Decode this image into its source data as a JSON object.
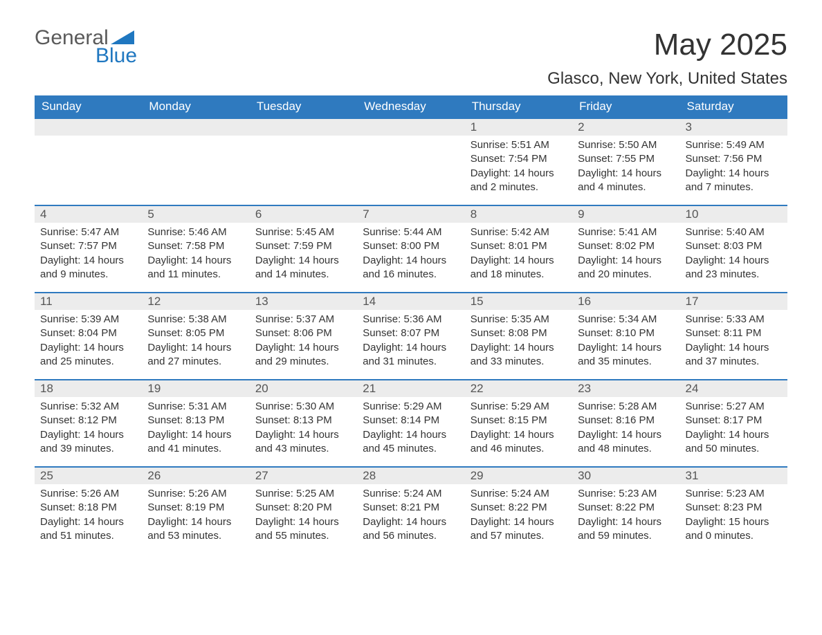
{
  "brand": {
    "name_part1": "General",
    "name_part2": "Blue",
    "text_color": "#5a5a5a",
    "accent_color": "#1f77c0"
  },
  "header": {
    "month_title": "May 2025",
    "location": "Glasco, New York, United States"
  },
  "colors": {
    "header_bg": "#2f7abf",
    "header_text": "#ffffff",
    "daynum_bg": "#ececec",
    "daynum_text": "#555555",
    "row_divider": "#2f7abf",
    "body_text": "#333333",
    "page_bg": "#ffffff"
  },
  "typography": {
    "month_title_fontsize": 44,
    "location_fontsize": 24,
    "weekday_fontsize": 17,
    "daynum_fontsize": 17,
    "body_fontsize": 15
  },
  "calendar": {
    "weekdays": [
      "Sunday",
      "Monday",
      "Tuesday",
      "Wednesday",
      "Thursday",
      "Friday",
      "Saturday"
    ],
    "weeks": [
      [
        {
          "day": "",
          "lines": []
        },
        {
          "day": "",
          "lines": []
        },
        {
          "day": "",
          "lines": []
        },
        {
          "day": "",
          "lines": []
        },
        {
          "day": "1",
          "lines": [
            "Sunrise: 5:51 AM",
            "Sunset: 7:54 PM",
            "Daylight: 14 hours and 2 minutes."
          ]
        },
        {
          "day": "2",
          "lines": [
            "Sunrise: 5:50 AM",
            "Sunset: 7:55 PM",
            "Daylight: 14 hours and 4 minutes."
          ]
        },
        {
          "day": "3",
          "lines": [
            "Sunrise: 5:49 AM",
            "Sunset: 7:56 PM",
            "Daylight: 14 hours and 7 minutes."
          ]
        }
      ],
      [
        {
          "day": "4",
          "lines": [
            "Sunrise: 5:47 AM",
            "Sunset: 7:57 PM",
            "Daylight: 14 hours and 9 minutes."
          ]
        },
        {
          "day": "5",
          "lines": [
            "Sunrise: 5:46 AM",
            "Sunset: 7:58 PM",
            "Daylight: 14 hours and 11 minutes."
          ]
        },
        {
          "day": "6",
          "lines": [
            "Sunrise: 5:45 AM",
            "Sunset: 7:59 PM",
            "Daylight: 14 hours and 14 minutes."
          ]
        },
        {
          "day": "7",
          "lines": [
            "Sunrise: 5:44 AM",
            "Sunset: 8:00 PM",
            "Daylight: 14 hours and 16 minutes."
          ]
        },
        {
          "day": "8",
          "lines": [
            "Sunrise: 5:42 AM",
            "Sunset: 8:01 PM",
            "Daylight: 14 hours and 18 minutes."
          ]
        },
        {
          "day": "9",
          "lines": [
            "Sunrise: 5:41 AM",
            "Sunset: 8:02 PM",
            "Daylight: 14 hours and 20 minutes."
          ]
        },
        {
          "day": "10",
          "lines": [
            "Sunrise: 5:40 AM",
            "Sunset: 8:03 PM",
            "Daylight: 14 hours and 23 minutes."
          ]
        }
      ],
      [
        {
          "day": "11",
          "lines": [
            "Sunrise: 5:39 AM",
            "Sunset: 8:04 PM",
            "Daylight: 14 hours and 25 minutes."
          ]
        },
        {
          "day": "12",
          "lines": [
            "Sunrise: 5:38 AM",
            "Sunset: 8:05 PM",
            "Daylight: 14 hours and 27 minutes."
          ]
        },
        {
          "day": "13",
          "lines": [
            "Sunrise: 5:37 AM",
            "Sunset: 8:06 PM",
            "Daylight: 14 hours and 29 minutes."
          ]
        },
        {
          "day": "14",
          "lines": [
            "Sunrise: 5:36 AM",
            "Sunset: 8:07 PM",
            "Daylight: 14 hours and 31 minutes."
          ]
        },
        {
          "day": "15",
          "lines": [
            "Sunrise: 5:35 AM",
            "Sunset: 8:08 PM",
            "Daylight: 14 hours and 33 minutes."
          ]
        },
        {
          "day": "16",
          "lines": [
            "Sunrise: 5:34 AM",
            "Sunset: 8:10 PM",
            "Daylight: 14 hours and 35 minutes."
          ]
        },
        {
          "day": "17",
          "lines": [
            "Sunrise: 5:33 AM",
            "Sunset: 8:11 PM",
            "Daylight: 14 hours and 37 minutes."
          ]
        }
      ],
      [
        {
          "day": "18",
          "lines": [
            "Sunrise: 5:32 AM",
            "Sunset: 8:12 PM",
            "Daylight: 14 hours and 39 minutes."
          ]
        },
        {
          "day": "19",
          "lines": [
            "Sunrise: 5:31 AM",
            "Sunset: 8:13 PM",
            "Daylight: 14 hours and 41 minutes."
          ]
        },
        {
          "day": "20",
          "lines": [
            "Sunrise: 5:30 AM",
            "Sunset: 8:13 PM",
            "Daylight: 14 hours and 43 minutes."
          ]
        },
        {
          "day": "21",
          "lines": [
            "Sunrise: 5:29 AM",
            "Sunset: 8:14 PM",
            "Daylight: 14 hours and 45 minutes."
          ]
        },
        {
          "day": "22",
          "lines": [
            "Sunrise: 5:29 AM",
            "Sunset: 8:15 PM",
            "Daylight: 14 hours and 46 minutes."
          ]
        },
        {
          "day": "23",
          "lines": [
            "Sunrise: 5:28 AM",
            "Sunset: 8:16 PM",
            "Daylight: 14 hours and 48 minutes."
          ]
        },
        {
          "day": "24",
          "lines": [
            "Sunrise: 5:27 AM",
            "Sunset: 8:17 PM",
            "Daylight: 14 hours and 50 minutes."
          ]
        }
      ],
      [
        {
          "day": "25",
          "lines": [
            "Sunrise: 5:26 AM",
            "Sunset: 8:18 PM",
            "Daylight: 14 hours and 51 minutes."
          ]
        },
        {
          "day": "26",
          "lines": [
            "Sunrise: 5:26 AM",
            "Sunset: 8:19 PM",
            "Daylight: 14 hours and 53 minutes."
          ]
        },
        {
          "day": "27",
          "lines": [
            "Sunrise: 5:25 AM",
            "Sunset: 8:20 PM",
            "Daylight: 14 hours and 55 minutes."
          ]
        },
        {
          "day": "28",
          "lines": [
            "Sunrise: 5:24 AM",
            "Sunset: 8:21 PM",
            "Daylight: 14 hours and 56 minutes."
          ]
        },
        {
          "day": "29",
          "lines": [
            "Sunrise: 5:24 AM",
            "Sunset: 8:22 PM",
            "Daylight: 14 hours and 57 minutes."
          ]
        },
        {
          "day": "30",
          "lines": [
            "Sunrise: 5:23 AM",
            "Sunset: 8:22 PM",
            "Daylight: 14 hours and 59 minutes."
          ]
        },
        {
          "day": "31",
          "lines": [
            "Sunrise: 5:23 AM",
            "Sunset: 8:23 PM",
            "Daylight: 15 hours and 0 minutes."
          ]
        }
      ]
    ]
  }
}
